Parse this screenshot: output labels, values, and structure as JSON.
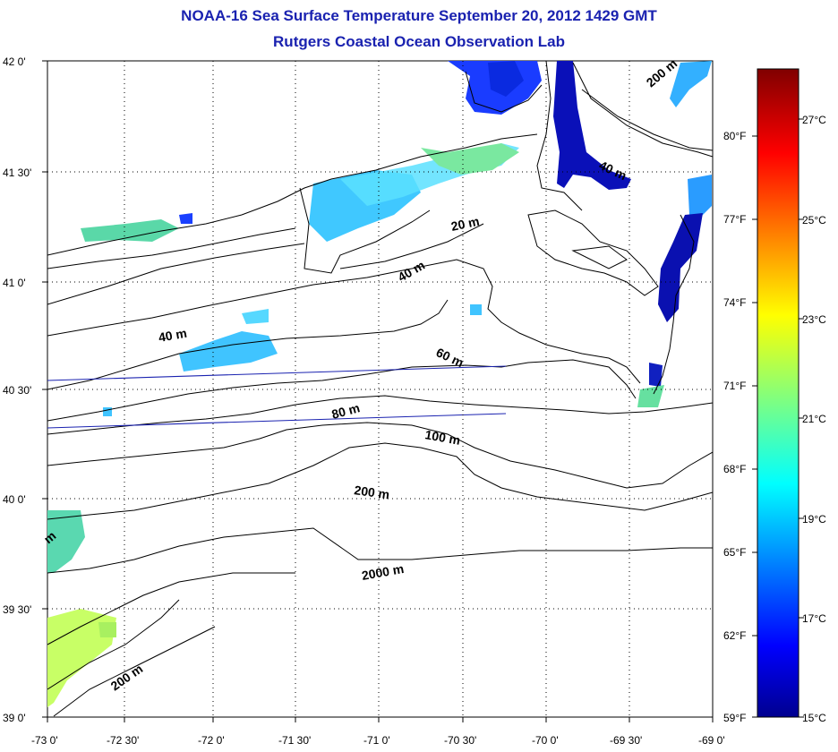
{
  "header": {
    "title": "NOAA-16 Sea Surface Temperature September 20, 2012 1429 GMT",
    "subtitle": "Rutgers Coastal Ocean Observation Lab"
  },
  "map": {
    "lat_ticks": [
      "42 0'",
      "41 30'",
      "41 0'",
      "40 30'",
      "40 0'",
      "39 30'",
      "39 0'"
    ],
    "lon_ticks": [
      "-73 0'",
      "-72 30'",
      "-72 0'",
      "-71 30'",
      "-71 0'",
      "-70 30'",
      "-70 0'",
      "-69 30'",
      "-69 0'"
    ],
    "depth_labels": [
      "20 m",
      "40 m",
      "40 m",
      "40 m",
      "60 m",
      "80 m",
      "100 m",
      "200 m",
      "2000 m",
      "200 m",
      "200 m",
      "m"
    ]
  },
  "colorbar": {
    "celsius_ticks": [
      "27°C",
      "25°C",
      "23°C",
      "21°C",
      "19°C",
      "17°C",
      "15°C"
    ],
    "fahrenheit_ticks": [
      "80°F",
      "77°F",
      "74°F",
      "71°F",
      "68°F",
      "65°F",
      "62°F",
      "59°F"
    ],
    "range_celsius": [
      15,
      28
    ]
  }
}
